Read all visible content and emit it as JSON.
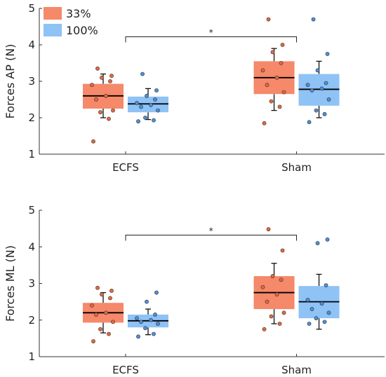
{
  "legend": {
    "position": "top-left",
    "items": [
      {
        "label": "33%",
        "color": "#F5896A"
      },
      {
        "label": "100%",
        "color": "#8FC2F5"
      }
    ]
  },
  "colors": {
    "series_33_box": "#F5896A",
    "series_33_point": "#E8663F",
    "series_100_box": "#8FC2F5",
    "series_100_point": "#4D8FDD",
    "median": "#000000"
  },
  "chart_data": [
    {
      "type": "box",
      "ylabel": "Forces AP (N)",
      "ylim": [
        1,
        5
      ],
      "yticks": [
        "1",
        "2",
        "3",
        "4",
        "5"
      ],
      "categories": [
        "ECFS",
        "Sham"
      ],
      "significance": {
        "from": "ECFS",
        "to": "Sham",
        "label": "*"
      },
      "series": [
        {
          "name": "33%",
          "boxes": [
            {
              "q1": 2.25,
              "median": 2.6,
              "q3": 2.93,
              "whisker_low": 2.0,
              "whisker_high": 3.2,
              "points": [
                1.35,
                1.97,
                2.15,
                2.2,
                2.5,
                2.6,
                2.9,
                3.0,
                3.1,
                3.15,
                3.35
              ]
            },
            {
              "q1": 2.65,
              "median": 3.1,
              "q3": 3.55,
              "whisker_low": 2.2,
              "whisker_high": 3.9,
              "points": [
                1.85,
                2.3,
                2.45,
                2.7,
                2.9,
                3.1,
                3.3,
                3.5,
                3.8,
                4.0,
                4.7
              ]
            }
          ]
        },
        {
          "name": "100%",
          "boxes": [
            {
              "q1": 2.15,
              "median": 2.38,
              "q3": 2.58,
              "whisker_low": 1.95,
              "whisker_high": 2.8,
              "points": [
                1.9,
                1.93,
                2.0,
                2.2,
                2.3,
                2.35,
                2.4,
                2.5,
                2.6,
                2.75,
                3.2
              ]
            },
            {
              "q1": 2.33,
              "median": 2.78,
              "q3": 3.2,
              "whisker_low": 2.0,
              "whisker_high": 3.55,
              "points": [
                1.88,
                2.1,
                2.2,
                2.5,
                2.75,
                2.8,
                2.9,
                2.95,
                3.3,
                3.75,
                4.7
              ]
            }
          ]
        }
      ]
    },
    {
      "type": "box",
      "ylabel": "Forces ML (N)",
      "ylim": [
        1,
        5
      ],
      "yticks": [
        "1",
        "2",
        "3",
        "4",
        "5"
      ],
      "categories": [
        "ECFS",
        "Sham"
      ],
      "significance": {
        "from": "ECFS",
        "to": "Sham",
        "label": "*"
      },
      "series": [
        {
          "name": "33%",
          "boxes": [
            {
              "q1": 1.93,
              "median": 2.2,
              "q3": 2.47,
              "whisker_low": 1.65,
              "whisker_high": 2.75,
              "points": [
                1.42,
                1.62,
                1.75,
                1.95,
                2.15,
                2.2,
                2.4,
                2.6,
                2.7,
                2.8,
                2.88
              ]
            },
            {
              "q1": 2.3,
              "median": 2.75,
              "q3": 3.2,
              "whisker_low": 1.9,
              "whisker_high": 3.55,
              "points": [
                1.75,
                1.9,
                2.1,
                2.2,
                2.5,
                2.7,
                2.9,
                3.1,
                3.2,
                3.9,
                4.48
              ]
            }
          ]
        },
        {
          "name": "100%",
          "boxes": [
            {
              "q1": 1.8,
              "median": 1.98,
              "q3": 2.15,
              "whisker_low": 1.6,
              "whisker_high": 2.3,
              "points": [
                1.55,
                1.62,
                1.78,
                1.9,
                1.95,
                2.0,
                2.05,
                2.15,
                2.5,
                2.75
              ]
            },
            {
              "q1": 2.05,
              "median": 2.5,
              "q3": 2.93,
              "whisker_low": 1.75,
              "whisker_high": 3.25,
              "points": [
                1.9,
                1.95,
                2.05,
                2.2,
                2.3,
                2.45,
                2.55,
                2.95,
                4.1,
                4.2
              ]
            }
          ]
        }
      ]
    }
  ]
}
